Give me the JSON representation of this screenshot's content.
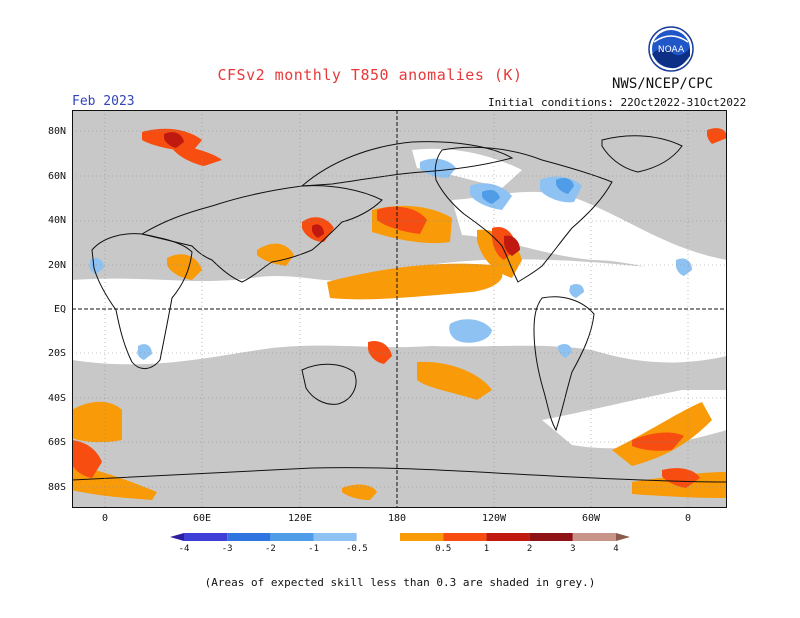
{
  "title": "CFSv2 monthly T850 anomalies (K)",
  "organization": "NWS/NCEP/CPC",
  "logo_text": "NOAA",
  "month": "Feb 2023",
  "initial_conditions": "Initial conditions: 22Oct2022-31Oct2022",
  "lat_labels": [
    "80N",
    "60N",
    "40N",
    "20N",
    "EQ",
    "20S",
    "40S",
    "60S",
    "80S"
  ],
  "lon_labels": [
    "0",
    "60E",
    "120E",
    "180",
    "120W",
    "60W",
    "0"
  ],
  "colorbar": {
    "labels": [
      "-4",
      "-3",
      "-2",
      "-1",
      "-0.5",
      "0.5",
      "1",
      "2",
      "3",
      "4"
    ],
    "colors": [
      "#2c1ea0",
      "#3d3fd6",
      "#2f74df",
      "#4f9ce8",
      "#8ec2f2",
      "#ffffff",
      "#f99a08",
      "#f74d10",
      "#c01a10",
      "#8f1214",
      "#c9958a",
      "#8a5a4a"
    ]
  },
  "footnote": "(Areas of expected skill less than 0.3 are shaded in grey.)",
  "colors": {
    "low_skill": "#c8c8c8",
    "ocean": "#ffffff",
    "title": "#e8393a",
    "month": "#3344bb"
  }
}
